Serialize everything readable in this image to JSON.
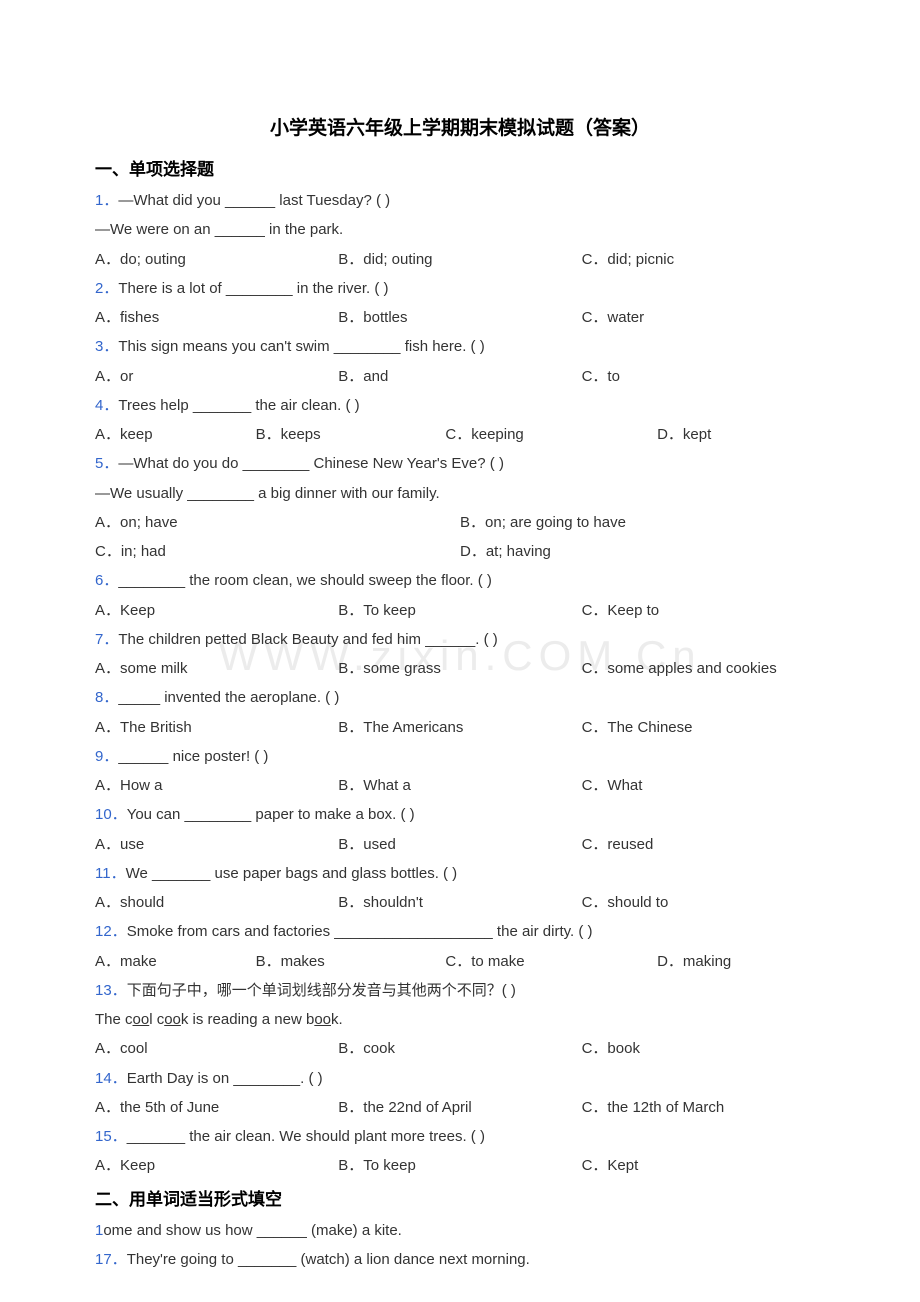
{
  "page_title": "小学英语六年级上学期期末模拟试题（答案）",
  "section1_title": "一、单项选择题",
  "section2_title": "二、用单词适当形式填空",
  "watermark": "WWW.zixin.COM.Cn",
  "q1": {
    "num": "1．",
    "stem": "—What did you ______ last Tuesday? (    )",
    "line2": "—We were on an ______ in the park.",
    "a": "A．do; outing",
    "b": "B．did; outing",
    "c": "C．did; picnic"
  },
  "q2": {
    "num": "2．",
    "stem": "There is a lot of ________ in the river. (     )",
    "a": "A．fishes",
    "b": "B．bottles",
    "c": "C．water"
  },
  "q3": {
    "num": "3．",
    "stem": "This sign means you can't swim ________ fish here. (     )",
    "a": "A．or",
    "b": "B．and",
    "c": "C．to"
  },
  "q4": {
    "num": "4．",
    "stem": "Trees help _______ the air clean. (    )",
    "a": "A．keep",
    "b": "B．keeps",
    "c": "C．keeping",
    "d": "D．kept"
  },
  "q5": {
    "num": "5．",
    "stem": "—What do you do ________ Chinese New Year's Eve? (    )",
    "line2": "—We usually ________ a big dinner with our family.",
    "a": "A．on; have",
    "b": "B．on; are going to have",
    "c": "C．in; had",
    "d": "D．at; having"
  },
  "q6": {
    "num": "6．",
    "stem": "________ the room clean, we should sweep the floor. (    )",
    "a": "A．Keep",
    "b": "B．To keep",
    "c": "C．Keep to"
  },
  "q7": {
    "num": "7．",
    "stem": "The children petted Black Beauty and fed him ______. (    )",
    "a": "A．some milk",
    "b": "B．some grass",
    "c": "C．some apples and cookies"
  },
  "q8": {
    "num": "8．",
    "stem": "_____ invented the aeroplane. (    )",
    "a": "A．The British",
    "b": "B．The Americans",
    "c": "C．The Chinese"
  },
  "q9": {
    "num": "9．",
    "stem": "______ nice poster! (   )",
    "a": "A．How a",
    "b": "B．What a",
    "c": "C．What"
  },
  "q10": {
    "num": "10．",
    "stem": "You can ________ paper to make a box. (     )",
    "a": "A．use",
    "b": "B．used",
    "c": "C．reused"
  },
  "q11": {
    "num": "11．",
    "stem": "We _______ use paper bags and glass bottles. (    )",
    "a": "A．should",
    "b": "B．shouldn't",
    "c": "C．should to"
  },
  "q12": {
    "num": "12．",
    "stem": "Smoke from cars and factories ___________________ the air dirty. (    )",
    "a": "A．make",
    "b": "B．makes",
    "c": "C．to make",
    "d": "D．making"
  },
  "q13": {
    "num": "13．",
    "stem": "下面句子中，哪一个单词划线部分发音与其他两个不同？(   )",
    "line2_pre": "The c",
    "line2_u1": "oo",
    "line2_mid1": "l c",
    "line2_u2": "oo",
    "line2_mid2": "k is reading a new b",
    "line2_u3": "oo",
    "line2_post": "k.",
    "a": "A．cool",
    "b": "B．cook",
    "c": "C．book"
  },
  "q14": {
    "num": "14．",
    "stem": "Earth Day is on ________. (    )",
    "a": "A．the 5th of June",
    "b": "B．the 22nd of April",
    "c": "C．the 12th of March"
  },
  "q15": {
    "num": "15．",
    "stem": "_______ the air clean. We should plant more trees. (     )",
    "a": "A．Keep",
    "b": "B．To keep",
    "c": "C．Kept"
  },
  "q16": {
    "num": "1",
    "stem": "ome and show us how ______ (make) a kite."
  },
  "q17": {
    "num": "17．",
    "stem": "They're going to _______ (watch) a lion dance next morning."
  }
}
